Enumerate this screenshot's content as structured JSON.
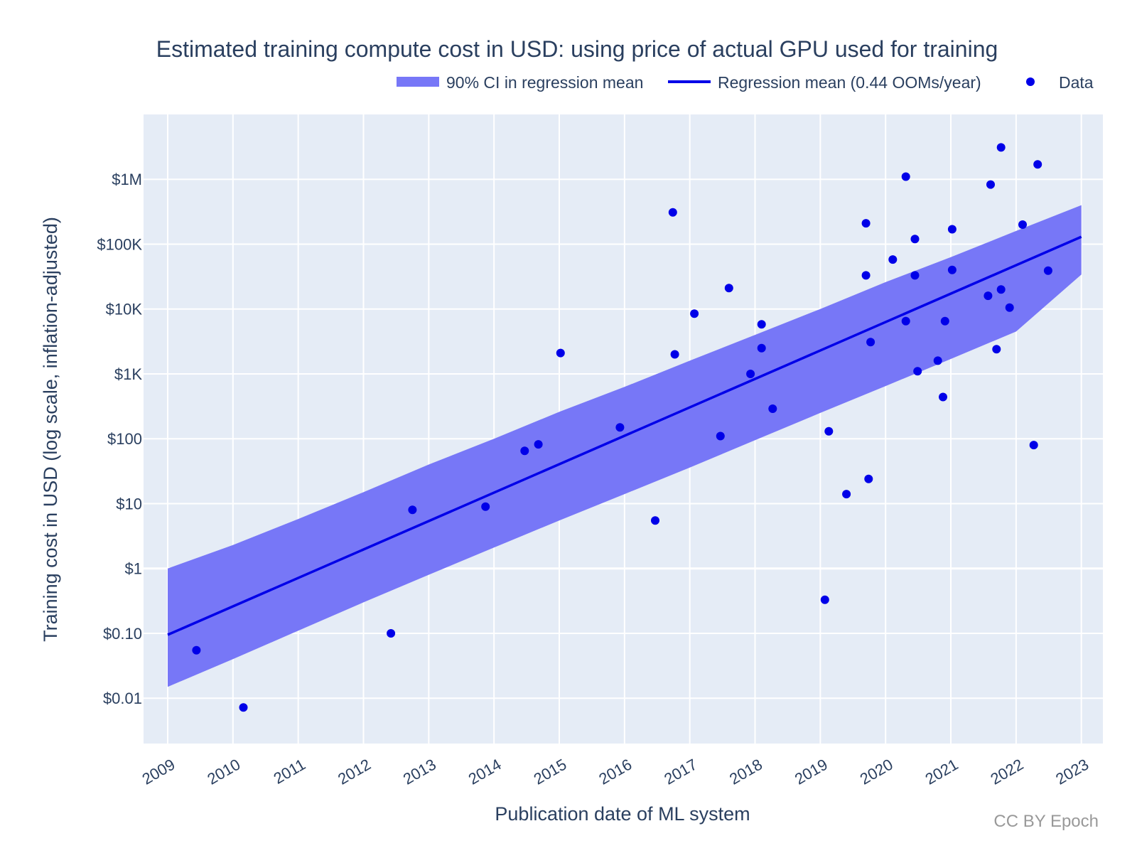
{
  "chart_data": {
    "type": "scatter",
    "title": "Estimated training compute cost in USD: using price of actual GPU used for training",
    "xlabel": "Publication date of ML system",
    "ylabel": "Training cost in USD (log scale, inflation-adjusted)",
    "y_scale": "log",
    "xlim": [
      2008.63,
      2023.33
    ],
    "ylim": [
      0.002,
      10000000
    ],
    "x_ticks": [
      2009,
      2010,
      2011,
      2012,
      2013,
      2014,
      2015,
      2016,
      2017,
      2018,
      2019,
      2020,
      2021,
      2022,
      2023
    ],
    "x_tick_labels": [
      "2009",
      "2010",
      "2011",
      "2012",
      "2013",
      "2014",
      "2015",
      "2016",
      "2017",
      "2018",
      "2019",
      "2020",
      "2021",
      "2022",
      "2023"
    ],
    "y_ticks": [
      0.01,
      0.1,
      1,
      10,
      100,
      1000,
      10000,
      100000,
      1000000
    ],
    "y_tick_labels": [
      "$0.01",
      "$0.10",
      "$1",
      "$10",
      "$100",
      "$1K",
      "$10K",
      "$100K",
      "$1M"
    ],
    "grid": true,
    "legend_position": "top-right",
    "credit": "CC BY Epoch",
    "colors": {
      "plot_bg": "#e5ecf6",
      "grid": "#ffffff",
      "band": "#7777f7",
      "line": "#0000e8",
      "points": "#0000e8"
    },
    "series": [
      {
        "name": "90% CI in regression mean",
        "type": "band",
        "x": [
          2009.0,
          2010.0,
          2011.0,
          2012.0,
          2013.0,
          2014.0,
          2015.0,
          2016.0,
          2017.0,
          2018.0,
          2019.0,
          2020.0,
          2021.0,
          2022.0,
          2023.0
        ],
        "upper": [
          1.0,
          2.3,
          5.8,
          15,
          40,
          100,
          260,
          630,
          1600,
          4000,
          10000,
          26000,
          63000,
          160000,
          400000
        ],
        "lower": [
          0.015,
          0.04,
          0.11,
          0.3,
          0.8,
          2.1,
          5.5,
          14,
          36,
          95,
          250,
          650,
          1700,
          4500,
          34000
        ]
      },
      {
        "name": "Regression mean (0.44 OOMs/year)",
        "type": "line",
        "x": [
          2009.0,
          2023.0
        ],
        "y": [
          0.095,
          130000
        ]
      },
      {
        "name": "Data",
        "type": "scatter",
        "points": [
          {
            "x": 2009.44,
            "y": 0.055
          },
          {
            "x": 2010.16,
            "y": 0.0072
          },
          {
            "x": 2012.42,
            "y": 0.1
          },
          {
            "x": 2012.75,
            "y": 8
          },
          {
            "x": 2013.87,
            "y": 9
          },
          {
            "x": 2014.47,
            "y": 65
          },
          {
            "x": 2014.68,
            "y": 82
          },
          {
            "x": 2015.02,
            "y": 2100
          },
          {
            "x": 2015.93,
            "y": 150
          },
          {
            "x": 2016.47,
            "y": 5.5
          },
          {
            "x": 2016.74,
            "y": 310000
          },
          {
            "x": 2016.77,
            "y": 2000
          },
          {
            "x": 2017.07,
            "y": 8500
          },
          {
            "x": 2017.47,
            "y": 110
          },
          {
            "x": 2017.6,
            "y": 21000
          },
          {
            "x": 2017.93,
            "y": 1000
          },
          {
            "x": 2018.1,
            "y": 2500
          },
          {
            "x": 2018.1,
            "y": 5800
          },
          {
            "x": 2018.27,
            "y": 290
          },
          {
            "x": 2019.07,
            "y": 0.33
          },
          {
            "x": 2019.13,
            "y": 130
          },
          {
            "x": 2019.4,
            "y": 14
          },
          {
            "x": 2019.7,
            "y": 210000
          },
          {
            "x": 2019.7,
            "y": 33000
          },
          {
            "x": 2019.74,
            "y": 24
          },
          {
            "x": 2019.77,
            "y": 3100
          },
          {
            "x": 2020.11,
            "y": 58000
          },
          {
            "x": 2020.31,
            "y": 1100000
          },
          {
            "x": 2020.31,
            "y": 6500
          },
          {
            "x": 2020.45,
            "y": 120000
          },
          {
            "x": 2020.45,
            "y": 33000
          },
          {
            "x": 2020.49,
            "y": 1100
          },
          {
            "x": 2020.8,
            "y": 1600
          },
          {
            "x": 2020.88,
            "y": 440
          },
          {
            "x": 2020.91,
            "y": 6500
          },
          {
            "x": 2021.02,
            "y": 170000
          },
          {
            "x": 2021.02,
            "y": 40000
          },
          {
            "x": 2021.57,
            "y": 16000
          },
          {
            "x": 2021.61,
            "y": 830000
          },
          {
            "x": 2021.7,
            "y": 2400
          },
          {
            "x": 2021.77,
            "y": 3100000
          },
          {
            "x": 2021.77,
            "y": 20000
          },
          {
            "x": 2021.9,
            "y": 10500
          },
          {
            "x": 2022.1,
            "y": 200000
          },
          {
            "x": 2022.27,
            "y": 80
          },
          {
            "x": 2022.33,
            "y": 1700000
          },
          {
            "x": 2022.49,
            "y": 39000
          }
        ]
      }
    ]
  }
}
